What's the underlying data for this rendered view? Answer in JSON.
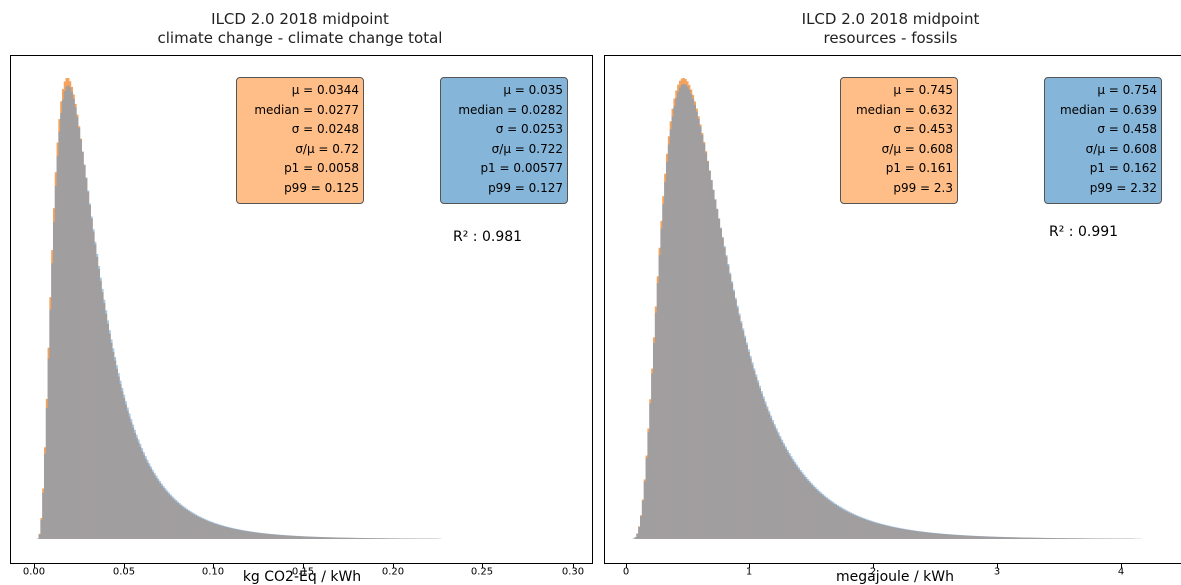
{
  "charts": [
    {
      "title_line1": "ILCD 2.0 2018 midpoint",
      "title_line2": "climate change - climate change total",
      "stats_orange": [
        "μ = 0.0344",
        "median = 0.0277",
        "σ = 0.0248",
        "σ/μ = 0.72",
        "p1 = 0.0058",
        "p99 = 0.125"
      ],
      "stats_blue": [
        "μ = 0.035",
        "median = 0.0282",
        "σ = 0.0253",
        "σ/μ = 0.722",
        "p1 = 0.00577",
        "p99 = 0.127"
      ],
      "r2": "R² : 0.981",
      "xticks": [
        "0.00",
        "0.05",
        "0.10",
        "0.15",
        "0.20",
        "0.25",
        "0.30"
      ],
      "xlabel": "kg CO2-Eq / kWh"
    },
    {
      "title_line1": "ILCD 2.0 2018 midpoint",
      "title_line2": "resources - fossils",
      "stats_orange": [
        "μ = 0.745",
        "median = 0.632",
        "σ = 0.453",
        "σ/μ = 0.608",
        "p1 = 0.161",
        "p99 = 2.3"
      ],
      "stats_blue": [
        "μ = 0.754",
        "median = 0.639",
        "σ = 0.458",
        "σ/μ = 0.608",
        "p1 = 0.162",
        "p99 = 2.32"
      ],
      "r2": "R² : 0.991",
      "xticks": [
        "0",
        "1",
        "2",
        "3",
        "4"
      ],
      "xlabel": "megajoule / kWh"
    }
  ],
  "colors": {
    "orange": "#f5a25d",
    "blue": "#5b9bd5",
    "overlap": "#c8864f",
    "box_orange": "#ffbd87",
    "box_blue": "#85b5d9"
  },
  "chart_data": [
    {
      "type": "histogram",
      "title": "ILCD 2.0 2018 midpoint\nclimate change - climate change total",
      "xlabel": "kg CO2-Eq / kWh",
      "ylabel": "",
      "xlim": [
        -0.015,
        0.3
      ],
      "x_ticks": [
        0.0,
        0.05,
        0.1,
        0.15,
        0.2,
        0.25,
        0.3
      ],
      "y_ticks_shown": false,
      "series": [
        {
          "name": "",
          "color": "orange",
          "distribution": "lognormal",
          "mean": 0.0344,
          "median": 0.0277,
          "sd": 0.0248,
          "p1": 0.0058,
          "p99": 0.125
        },
        {
          "name": "",
          "color": "blue",
          "distribution": "lognormal",
          "mean": 0.035,
          "median": 0.0282,
          "sd": 0.0253,
          "p1": 0.00577,
          "p99": 0.127
        }
      ],
      "r_squared": 0.981
    },
    {
      "type": "histogram",
      "title": "ILCD 2.0 2018 midpoint\nresources - fossils",
      "xlabel": "megajoule / kWh",
      "ylabel": "",
      "xlim": [
        -0.1,
        4.5
      ],
      "x_ticks": [
        0,
        1,
        2,
        3,
        4
      ],
      "y_ticks_shown": false,
      "series": [
        {
          "name": "",
          "color": "orange",
          "distribution": "lognormal",
          "mean": 0.745,
          "median": 0.632,
          "sd": 0.453,
          "p1": 0.161,
          "p99": 2.3
        },
        {
          "name": "",
          "color": "blue",
          "distribution": "lognormal",
          "mean": 0.754,
          "median": 0.639,
          "sd": 0.458,
          "p1": 0.162,
          "p99": 2.32
        }
      ],
      "r_squared": 0.991
    }
  ]
}
